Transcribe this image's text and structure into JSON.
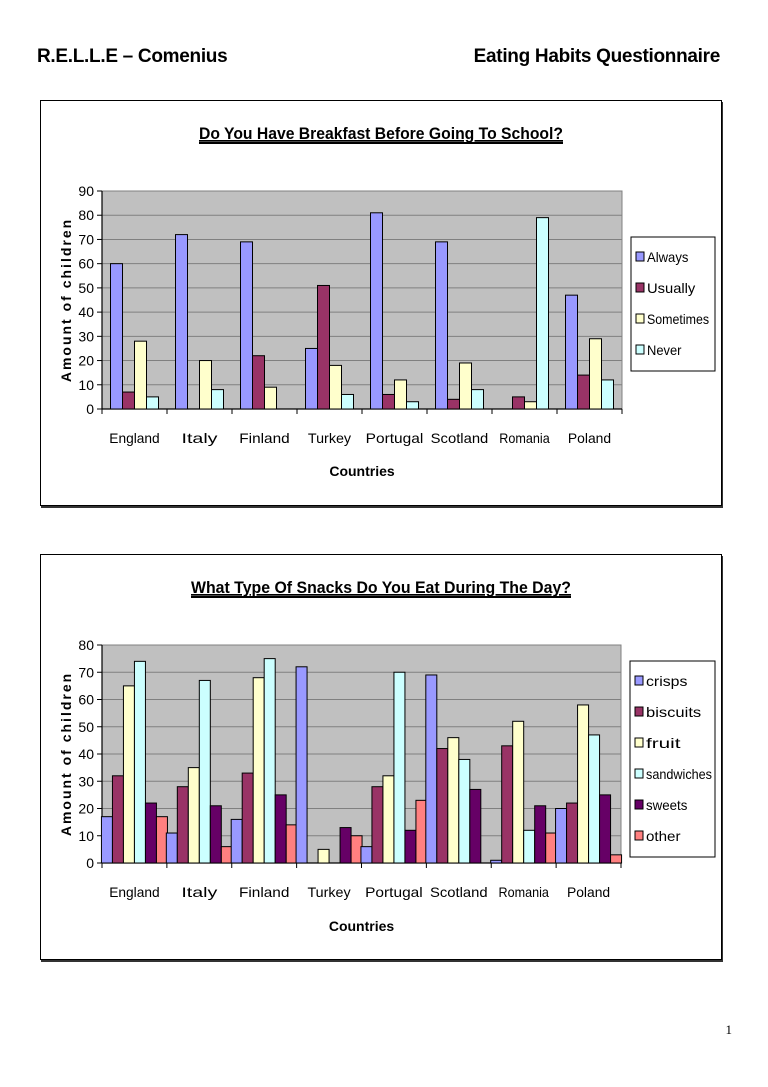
{
  "header": {
    "left": "R.E.L.L.E – Comenius",
    "right": "Eating Habits Questionnaire"
  },
  "page_number": "1",
  "chart_data": [
    {
      "type": "bar",
      "title": "Do You Have Breakfast Before Going To School?",
      "xlabel": "Countries",
      "ylabel": "Amount of children",
      "ylim": [
        0,
        90
      ],
      "yticks": [
        "0",
        "10",
        "20",
        "30",
        "40",
        "50",
        "60",
        "70",
        "80",
        "90"
      ],
      "grid": true,
      "legend_position": "right",
      "categories": [
        "England",
        "Italy",
        "Finland",
        "Turkey",
        "Portugal",
        "Scotland",
        "Romania",
        "Poland"
      ],
      "series": [
        {
          "name": "Always",
          "color": "#9999ff",
          "values": [
            60,
            72,
            69,
            25,
            81,
            69,
            0,
            47
          ]
        },
        {
          "name": "Usually",
          "color": "#993366",
          "values": [
            7,
            0,
            22,
            51,
            6,
            4,
            5,
            14
          ]
        },
        {
          "name": "Sometimes",
          "color": "#ffffcc",
          "values": [
            28,
            20,
            9,
            18,
            12,
            19,
            3,
            29
          ]
        },
        {
          "name": "Never",
          "color": "#ccffff",
          "values": [
            5,
            8,
            0,
            6,
            3,
            8,
            79,
            12
          ]
        }
      ]
    },
    {
      "type": "bar",
      "title": "What Type Of Snacks Do You Eat During The Day?",
      "xlabel": "Countries",
      "ylabel": "Amount of children",
      "ylim": [
        0,
        80
      ],
      "yticks": [
        "0",
        "10",
        "20",
        "30",
        "40",
        "50",
        "60",
        "70",
        "80"
      ],
      "grid": true,
      "legend_position": "right",
      "categories": [
        "England",
        "Italy",
        "Finland",
        "Turkey",
        "Portugal",
        "Scotland",
        "Romania",
        "Poland"
      ],
      "series": [
        {
          "name": "crisps",
          "color": "#9999ff",
          "values": [
            17,
            11,
            16,
            72,
            6,
            69,
            1,
            20
          ]
        },
        {
          "name": "biscuits",
          "color": "#993366",
          "values": [
            32,
            28,
            33,
            0,
            28,
            42,
            43,
            22
          ]
        },
        {
          "name": "fruit",
          "color": "#ffffcc",
          "values": [
            65,
            35,
            68,
            5,
            32,
            46,
            52,
            58
          ]
        },
        {
          "name": "sandwiches",
          "color": "#ccffff",
          "values": [
            74,
            67,
            75,
            0,
            70,
            38,
            12,
            47
          ]
        },
        {
          "name": "sweets",
          "color": "#660066",
          "values": [
            22,
            21,
            25,
            13,
            12,
            27,
            21,
            25
          ]
        },
        {
          "name": "other",
          "color": "#ff8080",
          "values": [
            17,
            6,
            14,
            10,
            23,
            0,
            11,
            3
          ]
        }
      ]
    }
  ]
}
